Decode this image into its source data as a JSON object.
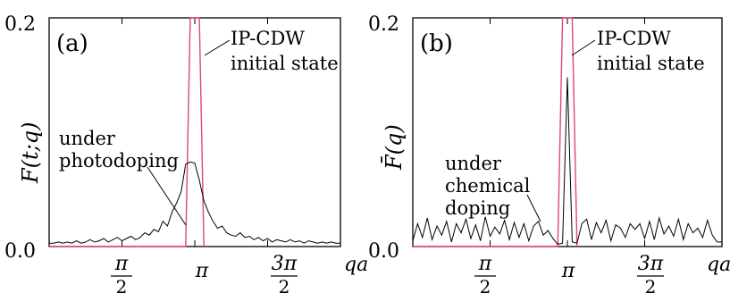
{
  "chart_data": [
    {
      "type": "line",
      "panel_label": "(a)",
      "ylabel": "F(t;q)",
      "xlabel": "qa",
      "ylim": [
        0,
        0.2
      ],
      "xlim": [
        0.0,
        6.2832
      ],
      "y_ticks": [
        "0.0",
        "0.2"
      ],
      "x_ticks": [
        {
          "value": 1.5708,
          "numerator": "π",
          "denominator": "2"
        },
        {
          "value": 3.1416,
          "label": "π"
        },
        {
          "value": 4.7124,
          "numerator": "3π",
          "denominator": "2"
        }
      ],
      "series": [
        {
          "name": "IP-CDW initial state",
          "color": "#e0457b",
          "x": [
            0.0,
            2.9452,
            3.0434,
            3.1416,
            3.2398,
            3.3379
          ],
          "y": [
            0.0,
            0.0,
            0.2,
            0.2,
            0.2,
            0.0
          ]
        },
        {
          "name": "under photodoping",
          "color": "#000000",
          "x": [
            0.0,
            0.0982,
            0.1963,
            0.2945,
            0.3927,
            0.4909,
            0.589,
            0.6872,
            0.7854,
            0.8836,
            0.9817,
            1.0799,
            1.1781,
            1.2763,
            1.3744,
            1.4726,
            1.5708,
            1.669,
            1.7671,
            1.8653,
            1.9635,
            2.0617,
            2.1598,
            2.258,
            2.3562,
            2.4544,
            2.5525,
            2.6507,
            2.7489,
            2.8471,
            2.9452,
            3.0434,
            3.1416,
            3.2398,
            3.3379,
            3.4361,
            3.5343,
            3.6325,
            3.7306,
            3.8288,
            3.927,
            4.0252,
            4.1233,
            4.2215,
            4.3197,
            4.4179,
            4.516,
            4.6142,
            4.7124,
            4.8106,
            4.9087,
            5.0069,
            5.1051,
            5.2033,
            5.3014,
            5.3996,
            5.4978,
            5.596,
            5.6941,
            5.7923,
            5.8905,
            5.9887,
            6.0868,
            6.185,
            6.2832
          ],
          "y": [
            0.003,
            0.003,
            0.004,
            0.003,
            0.004,
            0.003,
            0.005,
            0.003,
            0.004,
            0.006,
            0.004,
            0.005,
            0.007,
            0.004,
            0.006,
            0.008,
            0.005,
            0.007,
            0.009,
            0.006,
            0.008,
            0.012,
            0.01,
            0.015,
            0.013,
            0.022,
            0.018,
            0.03,
            0.038,
            0.048,
            0.072,
            0.074,
            0.073,
            0.058,
            0.04,
            0.03,
            0.022,
            0.016,
            0.018,
            0.012,
            0.01,
            0.009,
            0.012,
            0.008,
            0.009,
            0.006,
            0.008,
            0.005,
            0.007,
            0.004,
            0.006,
            0.005,
            0.004,
            0.006,
            0.004,
            0.005,
            0.003,
            0.005,
            0.004,
            0.003,
            0.004,
            0.003,
            0.004,
            0.003,
            0.003
          ]
        }
      ],
      "annotations": [
        {
          "lines": [
            "IP-CDW",
            "initial state"
          ]
        },
        {
          "lines": [
            "under",
            "photodoping"
          ]
        }
      ]
    },
    {
      "type": "line",
      "panel_label": "(b)",
      "ylabel": "F̄(q)",
      "xlabel": "qa",
      "ylim": [
        0,
        0.2
      ],
      "xlim": [
        0.0,
        6.2832
      ],
      "y_ticks": [
        "0.0",
        "0.2"
      ],
      "x_ticks": [
        {
          "value": 1.5708,
          "numerator": "π",
          "denominator": "2"
        },
        {
          "value": 3.1416,
          "label": "π"
        },
        {
          "value": 4.7124,
          "numerator": "3π",
          "denominator": "2"
        }
      ],
      "series": [
        {
          "name": "IP-CDW initial state",
          "color": "#e0457b",
          "x": [
            0.0,
            2.9452,
            3.0434,
            3.1416,
            3.2398,
            3.3379
          ],
          "y": [
            0.0,
            0.0,
            0.2,
            0.2,
            0.2,
            0.0
          ]
        },
        {
          "name": "under chemical doping",
          "color": "#000000",
          "x": [
            0.0,
            0.0982,
            0.1963,
            0.2945,
            0.3927,
            0.4909,
            0.589,
            0.6872,
            0.7854,
            0.8836,
            0.9817,
            1.0799,
            1.1781,
            1.2763,
            1.3744,
            1.4726,
            1.5708,
            1.669,
            1.7671,
            1.8653,
            1.9635,
            2.0617,
            2.1598,
            2.258,
            2.3562,
            2.4544,
            2.5525,
            2.6507,
            2.7489,
            2.8471,
            2.9452,
            3.0434,
            3.1416,
            3.2398,
            3.3379,
            3.4361,
            3.5343,
            3.6325,
            3.7306,
            3.8288,
            3.927,
            4.0252,
            4.1233,
            4.2215,
            4.3197,
            4.4179,
            4.516,
            4.6142,
            4.7124,
            4.8106,
            4.9087,
            5.0069,
            5.1051,
            5.2033,
            5.3014,
            5.3996,
            5.4978,
            5.596,
            5.6941,
            5.7923,
            5.8905,
            5.9887,
            6.0868,
            6.185,
            6.2832
          ],
          "y": [
            0.005,
            0.02,
            0.008,
            0.025,
            0.006,
            0.018,
            0.01,
            0.022,
            0.004,
            0.02,
            0.012,
            0.024,
            0.007,
            0.019,
            0.005,
            0.026,
            0.009,
            0.017,
            0.011,
            0.023,
            0.006,
            0.021,
            0.008,
            0.02,
            0.005,
            0.018,
            0.022,
            0.01,
            0.014,
            0.007,
            0.002,
            0.003,
            0.148,
            0.004,
            0.003,
            0.02,
            0.024,
            0.006,
            0.021,
            0.012,
            0.023,
            0.005,
            0.019,
            0.016,
            0.008,
            0.02,
            0.015,
            0.02,
            0.007,
            0.022,
            0.006,
            0.025,
            0.011,
            0.018,
            0.009,
            0.024,
            0.006,
            0.02,
            0.012,
            0.016,
            0.008,
            0.023,
            0.01,
            0.004,
            0.004
          ]
        }
      ],
      "annotations": [
        {
          "lines": [
            "IP-CDW",
            "initial state"
          ]
        },
        {
          "lines": [
            "under",
            "chemical",
            "doping"
          ]
        }
      ]
    }
  ]
}
